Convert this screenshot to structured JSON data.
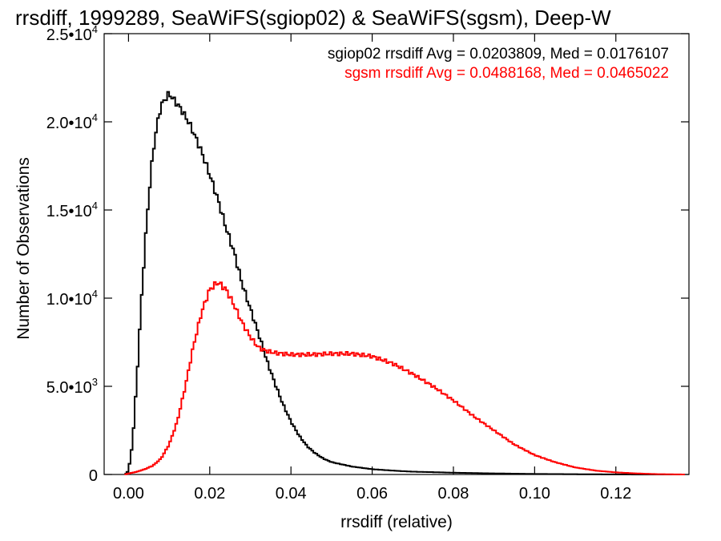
{
  "chart_data": {
    "type": "line",
    "title": "rrsdiff, 1999289, SeaWiFS(sgiop02) & SeaWiFS(sgsm), Deep-W",
    "xlabel": "rrsdiff (relative)",
    "ylabel": "Number of Observations",
    "xlim": [
      -0.006,
      0.138
    ],
    "ylim": [
      0,
      25000
    ],
    "xticks": [
      0.0,
      0.02,
      0.04,
      0.06,
      0.08,
      0.1,
      0.12
    ],
    "xtick_labels": [
      "0.00",
      "0.02",
      "0.04",
      "0.06",
      "0.08",
      "0.10",
      "0.12"
    ],
    "yticks": [
      {
        "value": 0,
        "mant": "0",
        "exp": ""
      },
      {
        "value": 5000,
        "mant": "5.0•10",
        "exp": "3"
      },
      {
        "value": 10000,
        "mant": "1.0•10",
        "exp": "4"
      },
      {
        "value": 15000,
        "mant": "1.5•10",
        "exp": "4"
      },
      {
        "value": 20000,
        "mant": "2.0•10",
        "exp": "4"
      },
      {
        "value": 25000,
        "mant": "2.5•10",
        "exp": "4"
      }
    ],
    "grid": false,
    "legend_position": "top-right",
    "legend": [
      {
        "text": "sgiop02 rrsdiff Avg = 0.0203809, Med = 0.0176107",
        "color": "#000000"
      },
      {
        "text": "sgsm rrsdiff Avg = 0.0488168, Med = 0.0465022",
        "color": "#ff0000"
      }
    ],
    "series": [
      {
        "color": "#000000",
        "x": [
          -0.001,
          0.0,
          0.001,
          0.002,
          0.003,
          0.004,
          0.005,
          0.006,
          0.007,
          0.008,
          0.009,
          0.01,
          0.011,
          0.012,
          0.013,
          0.014,
          0.015,
          0.016,
          0.018,
          0.02,
          0.022,
          0.024,
          0.026,
          0.028,
          0.03,
          0.032,
          0.034,
          0.036,
          0.038,
          0.04,
          0.042,
          0.044,
          0.046,
          0.048,
          0.05,
          0.055,
          0.06,
          0.065,
          0.07,
          0.08,
          0.09,
          0.1,
          0.11,
          0.12,
          0.13,
          0.137
        ],
        "y": [
          0,
          200,
          1800,
          5200,
          9200,
          12800,
          15800,
          18200,
          19800,
          20900,
          21300,
          21600,
          21300,
          21000,
          20700,
          20300,
          19900,
          19400,
          18300,
          17000,
          15600,
          14000,
          12600,
          10800,
          9400,
          8000,
          6500,
          5200,
          4000,
          3000,
          2200,
          1600,
          1200,
          900,
          700,
          450,
          300,
          220,
          160,
          100,
          60,
          30,
          15,
          5,
          0,
          0
        ]
      },
      {
        "color": "#ff0000",
        "x": [
          -0.001,
          0.0,
          0.002,
          0.004,
          0.006,
          0.008,
          0.01,
          0.012,
          0.014,
          0.016,
          0.018,
          0.02,
          0.022,
          0.024,
          0.026,
          0.028,
          0.03,
          0.032,
          0.034,
          0.036,
          0.038,
          0.04,
          0.045,
          0.05,
          0.055,
          0.06,
          0.065,
          0.07,
          0.075,
          0.08,
          0.085,
          0.09,
          0.095,
          0.1,
          0.105,
          0.11,
          0.115,
          0.12,
          0.125,
          0.13,
          0.137
        ],
        "y": [
          0,
          50,
          150,
          300,
          500,
          900,
          1700,
          3000,
          5000,
          7300,
          9200,
          10500,
          10900,
          10500,
          9600,
          8600,
          7800,
          7200,
          7000,
          6900,
          6850,
          6800,
          6800,
          6850,
          6850,
          6700,
          6300,
          5700,
          5000,
          4200,
          3300,
          2500,
          1700,
          1100,
          700,
          400,
          220,
          120,
          60,
          20,
          0
        ]
      }
    ]
  }
}
